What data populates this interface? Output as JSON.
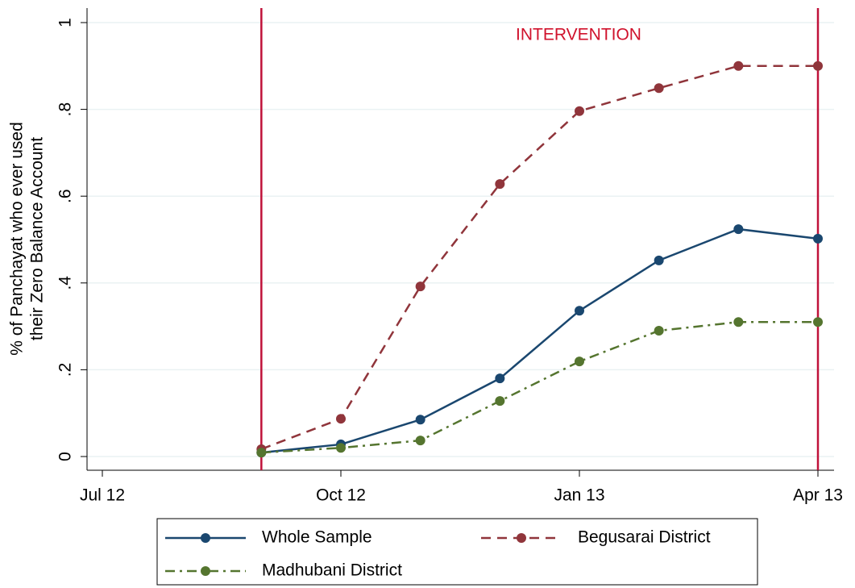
{
  "chart_data": {
    "type": "line",
    "ylabel": [
      "% of Panchayat who ever used",
      "their Zero Balance Account"
    ],
    "annotation": "INTERVENTION",
    "annotation_color": "#d0122c",
    "vlines": [
      "2012-09",
      "2013-04"
    ],
    "vline_color": "#c0123a",
    "x": [
      "2012-09",
      "2012-10",
      "2012-11",
      "2012-12",
      "2013-01",
      "2013-02",
      "2013-03",
      "2013-04"
    ],
    "xlim": [
      "2012-07",
      "2013-04"
    ],
    "xticks": [
      {
        "value": "2012-07",
        "label": "Jul 12"
      },
      {
        "value": "2012-10",
        "label": "Oct 12"
      },
      {
        "value": "2013-01",
        "label": "Jan 13"
      },
      {
        "value": "2013-04",
        "label": "Apr 13"
      }
    ],
    "ylim": [
      0,
      1
    ],
    "yticks": [
      0,
      {
        "value": 0.2,
        "label": ".2"
      },
      {
        "value": 0.4,
        "label": ".4"
      },
      {
        "value": 0.6,
        "label": ".6"
      },
      {
        "value": 0.8,
        "label": ".8"
      },
      {
        "value": 1,
        "label": "1"
      }
    ],
    "grid": true,
    "series": [
      {
        "name": "Whole Sample",
        "color": "#1a476f",
        "style": "solid",
        "values": [
          0.009,
          0.028,
          0.085,
          0.18,
          0.336,
          0.452,
          0.524,
          0.502
        ]
      },
      {
        "name": "Begusarai District",
        "color": "#90353b",
        "style": "dash",
        "values": [
          0.017,
          0.087,
          0.392,
          0.628,
          0.796,
          0.849,
          0.9,
          0.9
        ]
      },
      {
        "name": "Madhubani District",
        "color": "#55752f",
        "style": "dashdot",
        "values": [
          0.009,
          0.02,
          0.037,
          0.128,
          0.219,
          0.29,
          0.31,
          0.31
        ]
      }
    ]
  }
}
